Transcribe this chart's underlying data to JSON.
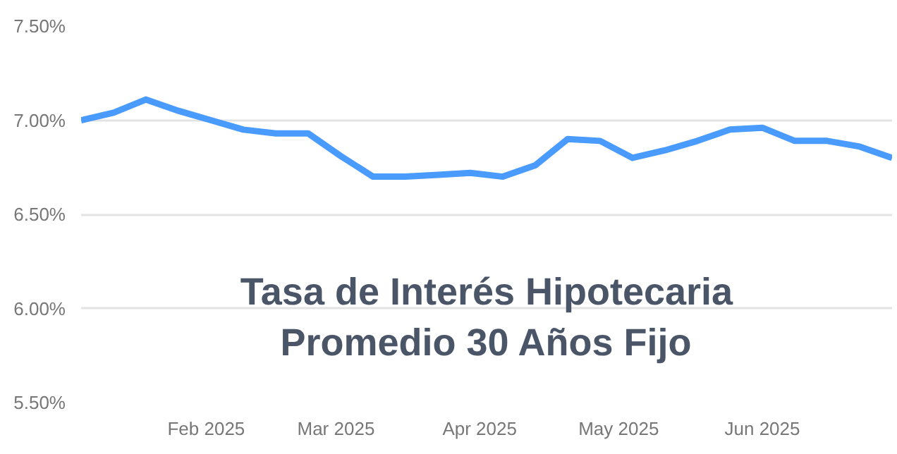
{
  "chart_data": {
    "type": "line",
    "title": "Tasa de Interés Hipotecaria\nPromedio 30 Años Fijo",
    "x": [
      "2025-01-05",
      "2025-01-12",
      "2025-01-19",
      "2025-01-26",
      "2025-02-02",
      "2025-02-09",
      "2025-02-16",
      "2025-02-23",
      "2025-03-02",
      "2025-03-09",
      "2025-03-16",
      "2025-03-23",
      "2025-03-30",
      "2025-04-06",
      "2025-04-13",
      "2025-04-20",
      "2025-04-27",
      "2025-05-04",
      "2025-05-11",
      "2025-05-18",
      "2025-05-25",
      "2025-06-01",
      "2025-06-08",
      "2025-06-15",
      "2025-06-22",
      "2025-06-29"
    ],
    "series": [
      {
        "color": "#4a9bff",
        "values": [
          7.0,
          7.04,
          7.11,
          7.05,
          7.0,
          6.95,
          6.93,
          6.93,
          6.81,
          6.7,
          6.7,
          6.71,
          6.72,
          6.7,
          6.76,
          6.9,
          6.89,
          6.8,
          6.84,
          6.89,
          6.95,
          6.96,
          6.89,
          6.89,
          6.86,
          6.8
        ]
      }
    ],
    "xlim": [
      "2025-01-05",
      "2025-06-29"
    ],
    "xticks": [
      {
        "value": "2025-02-01",
        "label": "Feb 2025"
      },
      {
        "value": "2025-03-01",
        "label": "Mar 2025"
      },
      {
        "value": "2025-04-01",
        "label": "Apr 2025"
      },
      {
        "value": "2025-05-01",
        "label": "May 2025"
      },
      {
        "value": "2025-06-01",
        "label": "Jun 2025"
      }
    ],
    "ylim": [
      5.5,
      7.5
    ],
    "yticks": [
      {
        "value": 5.5,
        "label": "5.50%"
      },
      {
        "value": 6.0,
        "label": "6.00%"
      },
      {
        "value": 6.5,
        "label": "6.50%"
      },
      {
        "value": 7.0,
        "label": "7.00%"
      },
      {
        "value": 7.5,
        "label": "7.50%"
      }
    ],
    "grid": "y",
    "marker": "none",
    "line_style": "solid"
  }
}
